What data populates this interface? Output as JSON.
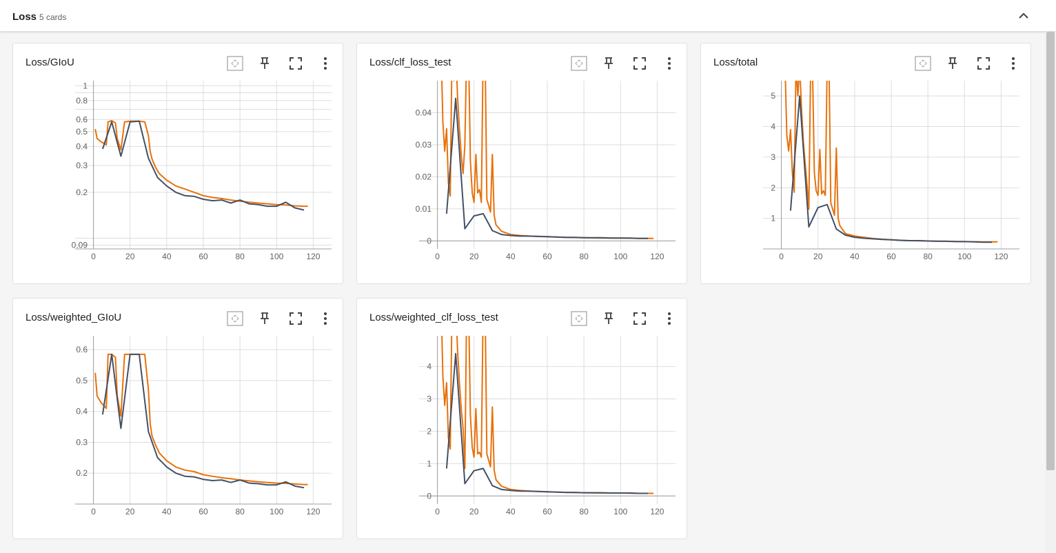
{
  "section": {
    "title": "Loss",
    "count_label": "5 cards"
  },
  "icons": {
    "collapse": "chevron-up-icon",
    "fit": "fit-domain-icon",
    "pin": "pin-icon",
    "fullscreen": "fullscreen-icon",
    "menu": "more-vert-icon"
  },
  "colors": {
    "train": "#e8710a",
    "test": "#425066",
    "grid": "#dddddd",
    "axis": "#9e9e9e"
  },
  "chart_data": [
    {
      "type": "line",
      "title": "Loss/GIoU",
      "scale": "log",
      "xlim": [
        -10,
        130
      ],
      "ylim": [
        0.085,
        1.08
      ],
      "xticks": [
        0,
        20,
        40,
        60,
        80,
        100,
        120
      ],
      "yticks": [
        {
          "v": 1,
          "l": "1"
        },
        {
          "v": 0.8,
          "l": "0.8"
        },
        {
          "v": 0.6,
          "l": "0.6"
        },
        {
          "v": 0.5,
          "l": "0.5"
        },
        {
          "v": 0.4,
          "l": "0.4"
        },
        {
          "v": 0.3,
          "l": "0.3"
        },
        {
          "v": 0.2,
          "l": "0.2"
        },
        {
          "v": 0.09,
          "l": "0.09"
        }
      ],
      "minor_yticks": [
        0.9,
        0.7,
        0.1
      ],
      "series": [
        {
          "role": "train",
          "x": [
            1,
            2,
            4,
            7,
            8,
            10,
            12,
            13,
            15,
            17,
            20,
            25,
            28,
            30,
            31,
            32,
            34,
            36,
            40,
            45,
            50,
            55,
            60,
            65,
            70,
            75,
            80,
            85,
            90,
            95,
            100,
            105,
            110,
            115,
            117
          ],
          "y": [
            0.52,
            0.45,
            0.43,
            0.41,
            0.58,
            0.59,
            0.57,
            0.45,
            0.38,
            0.58,
            0.585,
            0.585,
            0.58,
            0.47,
            0.37,
            0.33,
            0.29,
            0.265,
            0.24,
            0.22,
            0.21,
            0.2,
            0.19,
            0.185,
            0.182,
            0.178,
            0.175,
            0.172,
            0.17,
            0.168,
            0.166,
            0.165,
            0.163,
            0.162,
            0.162
          ]
        },
        {
          "role": "test",
          "x": [
            5,
            10,
            15,
            20,
            25,
            30,
            35,
            40,
            45,
            50,
            55,
            60,
            65,
            70,
            75,
            80,
            85,
            90,
            95,
            100,
            105,
            110,
            115
          ],
          "y": [
            0.385,
            0.58,
            0.345,
            0.58,
            0.585,
            0.335,
            0.25,
            0.22,
            0.2,
            0.19,
            0.188,
            0.18,
            0.176,
            0.178,
            0.17,
            0.178,
            0.168,
            0.166,
            0.162,
            0.162,
            0.172,
            0.158,
            0.153
          ]
        }
      ]
    },
    {
      "type": "line",
      "title": "Loss/clf_loss_test",
      "scale": "linear",
      "xlim": [
        -10,
        130
      ],
      "ylim": [
        -0.0025,
        0.05
      ],
      "xticks": [
        0,
        20,
        40,
        60,
        80,
        100,
        120
      ],
      "yticks": [
        {
          "v": 0,
          "l": "0"
        },
        {
          "v": 0.01,
          "l": "0.01"
        },
        {
          "v": 0.02,
          "l": "0.02"
        },
        {
          "v": 0.03,
          "l": "0.03"
        },
        {
          "v": 0.04,
          "l": "0.04"
        }
      ],
      "series": [
        {
          "role": "train",
          "x": [
            2,
            3,
            4,
            5,
            6,
            7,
            8,
            9,
            10,
            11,
            12,
            13,
            14,
            15,
            16,
            17,
            18,
            19,
            20,
            21,
            22,
            23,
            24,
            25,
            26,
            27,
            28,
            29,
            30,
            31,
            32,
            35,
            40,
            45,
            50,
            60,
            70,
            80,
            90,
            100,
            110,
            118
          ],
          "y": [
            0.06,
            0.037,
            0.028,
            0.035,
            0.018,
            0.014,
            0.06,
            0.05,
            0.06,
            0.045,
            0.035,
            0.027,
            0.021,
            0.03,
            0.06,
            0.06,
            0.025,
            0.015,
            0.012,
            0.027,
            0.015,
            0.016,
            0.012,
            0.06,
            0.06,
            0.013,
            0.011,
            0.009,
            0.027,
            0.008,
            0.005,
            0.003,
            0.002,
            0.0017,
            0.0015,
            0.0013,
            0.0011,
            0.001,
            0.0009,
            0.0009,
            0.0008,
            0.0008
          ]
        },
        {
          "role": "test",
          "x": [
            5,
            10,
            15,
            20,
            25,
            30,
            35,
            40,
            45,
            50,
            55,
            60,
            65,
            70,
            75,
            80,
            85,
            90,
            95,
            100,
            105,
            110,
            115
          ],
          "y": [
            0.0085,
            0.0445,
            0.0038,
            0.0078,
            0.0085,
            0.0032,
            0.002,
            0.0017,
            0.0015,
            0.0015,
            0.0014,
            0.0013,
            0.0012,
            0.0011,
            0.0011,
            0.001,
            0.001,
            0.001,
            0.0009,
            0.0009,
            0.0009,
            0.0008,
            0.0008
          ]
        }
      ]
    },
    {
      "type": "line",
      "title": "Loss/total",
      "scale": "linear",
      "xlim": [
        -10,
        130
      ],
      "ylim": [
        0,
        5.5
      ],
      "xticks": [
        0,
        20,
        40,
        60,
        80,
        100,
        120
      ],
      "yticks": [
        {
          "v": 1,
          "l": "1"
        },
        {
          "v": 2,
          "l": "2"
        },
        {
          "v": 3,
          "l": "3"
        },
        {
          "v": 4,
          "l": "4"
        },
        {
          "v": 5,
          "l": "5"
        }
      ],
      "series": [
        {
          "role": "train",
          "x": [
            2,
            3,
            4,
            5,
            6,
            7,
            8,
            9,
            10,
            11,
            12,
            13,
            14,
            15,
            16,
            17,
            18,
            19,
            20,
            21,
            22,
            23,
            24,
            25,
            26,
            27,
            28,
            29,
            30,
            31,
            32,
            35,
            40,
            45,
            50,
            60,
            70,
            80,
            90,
            100,
            110,
            118
          ],
          "y": [
            6,
            3.7,
            3.2,
            3.9,
            2.5,
            1.85,
            6,
            5,
            6,
            4.6,
            3.5,
            2.8,
            2.1,
            1.3,
            6,
            6,
            2.5,
            1.9,
            1.75,
            3.25,
            1.8,
            1.9,
            1.75,
            6,
            6,
            1.5,
            1.3,
            1.1,
            3.3,
            1,
            0.75,
            0.5,
            0.42,
            0.38,
            0.34,
            0.3,
            0.27,
            0.26,
            0.25,
            0.24,
            0.23,
            0.23
          ]
        },
        {
          "role": "test",
          "x": [
            5,
            10,
            15,
            20,
            25,
            30,
            35,
            40,
            45,
            50,
            55,
            60,
            65,
            70,
            75,
            80,
            85,
            90,
            95,
            100,
            105,
            110,
            115
          ],
          "y": [
            1.25,
            5,
            0.72,
            1.35,
            1.45,
            0.65,
            0.45,
            0.38,
            0.35,
            0.33,
            0.31,
            0.3,
            0.28,
            0.27,
            0.27,
            0.26,
            0.25,
            0.25,
            0.24,
            0.24,
            0.23,
            0.22,
            0.22
          ]
        }
      ]
    },
    {
      "type": "line",
      "title": "Loss/weighted_GIoU",
      "scale": "linear",
      "xlim": [
        -10,
        130
      ],
      "ylim": [
        0.1,
        0.645
      ],
      "xticks": [
        0,
        20,
        40,
        60,
        80,
        100,
        120
      ],
      "yticks": [
        {
          "v": 0.2,
          "l": "0.2"
        },
        {
          "v": 0.3,
          "l": "0.3"
        },
        {
          "v": 0.4,
          "l": "0.4"
        },
        {
          "v": 0.5,
          "l": "0.5"
        },
        {
          "v": 0.6,
          "l": "0.6"
        }
      ],
      "series": [
        {
          "role": "train",
          "x": [
            1,
            2,
            4,
            7,
            8,
            10,
            12,
            13,
            15,
            17,
            20,
            25,
            28,
            30,
            31,
            32,
            34,
            36,
            40,
            45,
            50,
            55,
            60,
            65,
            70,
            75,
            80,
            85,
            90,
            95,
            100,
            105,
            110,
            115,
            117
          ],
          "y": [
            0.525,
            0.45,
            0.43,
            0.41,
            0.585,
            0.585,
            0.575,
            0.45,
            0.385,
            0.585,
            0.585,
            0.585,
            0.585,
            0.47,
            0.36,
            0.32,
            0.29,
            0.265,
            0.24,
            0.22,
            0.21,
            0.205,
            0.195,
            0.19,
            0.185,
            0.182,
            0.178,
            0.175,
            0.172,
            0.17,
            0.168,
            0.167,
            0.165,
            0.163,
            0.163
          ]
        },
        {
          "role": "test",
          "x": [
            5,
            10,
            15,
            20,
            25,
            30,
            35,
            40,
            45,
            50,
            55,
            60,
            65,
            70,
            75,
            80,
            85,
            90,
            95,
            100,
            105,
            110,
            115
          ],
          "y": [
            0.39,
            0.585,
            0.345,
            0.585,
            0.585,
            0.335,
            0.25,
            0.22,
            0.2,
            0.19,
            0.188,
            0.18,
            0.176,
            0.178,
            0.17,
            0.178,
            0.168,
            0.166,
            0.162,
            0.162,
            0.172,
            0.158,
            0.153
          ]
        }
      ]
    },
    {
      "type": "line",
      "title": "Loss/weighted_clf_loss_test",
      "scale": "linear",
      "xlim": [
        -10,
        130
      ],
      "ylim": [
        -0.25,
        4.95
      ],
      "xticks": [
        0,
        20,
        40,
        60,
        80,
        100,
        120
      ],
      "yticks": [
        {
          "v": 0,
          "l": "0"
        },
        {
          "v": 1,
          "l": "1"
        },
        {
          "v": 2,
          "l": "2"
        },
        {
          "v": 3,
          "l": "3"
        },
        {
          "v": 4,
          "l": "4"
        }
      ],
      "series": [
        {
          "role": "train",
          "x": [
            2,
            3,
            4,
            5,
            6,
            7,
            8,
            9,
            10,
            11,
            12,
            13,
            14,
            15,
            16,
            17,
            18,
            19,
            20,
            21,
            22,
            23,
            24,
            25,
            26,
            27,
            28,
            29,
            30,
            31,
            32,
            35,
            40,
            45,
            50,
            60,
            70,
            80,
            90,
            100,
            110,
            118
          ],
          "y": [
            6,
            3.7,
            2.8,
            3.5,
            1.8,
            1.45,
            6,
            5,
            6,
            4.5,
            3.5,
            2.7,
            2.1,
            0.85,
            6,
            6,
            2.5,
            1.5,
            1.2,
            2.7,
            1.3,
            1.35,
            1.2,
            6,
            6,
            1.3,
            1.1,
            0.9,
            2.75,
            0.8,
            0.5,
            0.3,
            0.2,
            0.17,
            0.15,
            0.13,
            0.11,
            0.1,
            0.09,
            0.09,
            0.08,
            0.08
          ]
        },
        {
          "role": "test",
          "x": [
            5,
            10,
            15,
            20,
            25,
            30,
            35,
            40,
            45,
            50,
            55,
            60,
            65,
            70,
            75,
            80,
            85,
            90,
            95,
            100,
            105,
            110,
            115
          ],
          "y": [
            0.85,
            4.4,
            0.38,
            0.78,
            0.85,
            0.32,
            0.2,
            0.17,
            0.15,
            0.15,
            0.14,
            0.13,
            0.12,
            0.11,
            0.11,
            0.1,
            0.1,
            0.1,
            0.09,
            0.09,
            0.09,
            0.08,
            0.08
          ]
        }
      ]
    }
  ]
}
